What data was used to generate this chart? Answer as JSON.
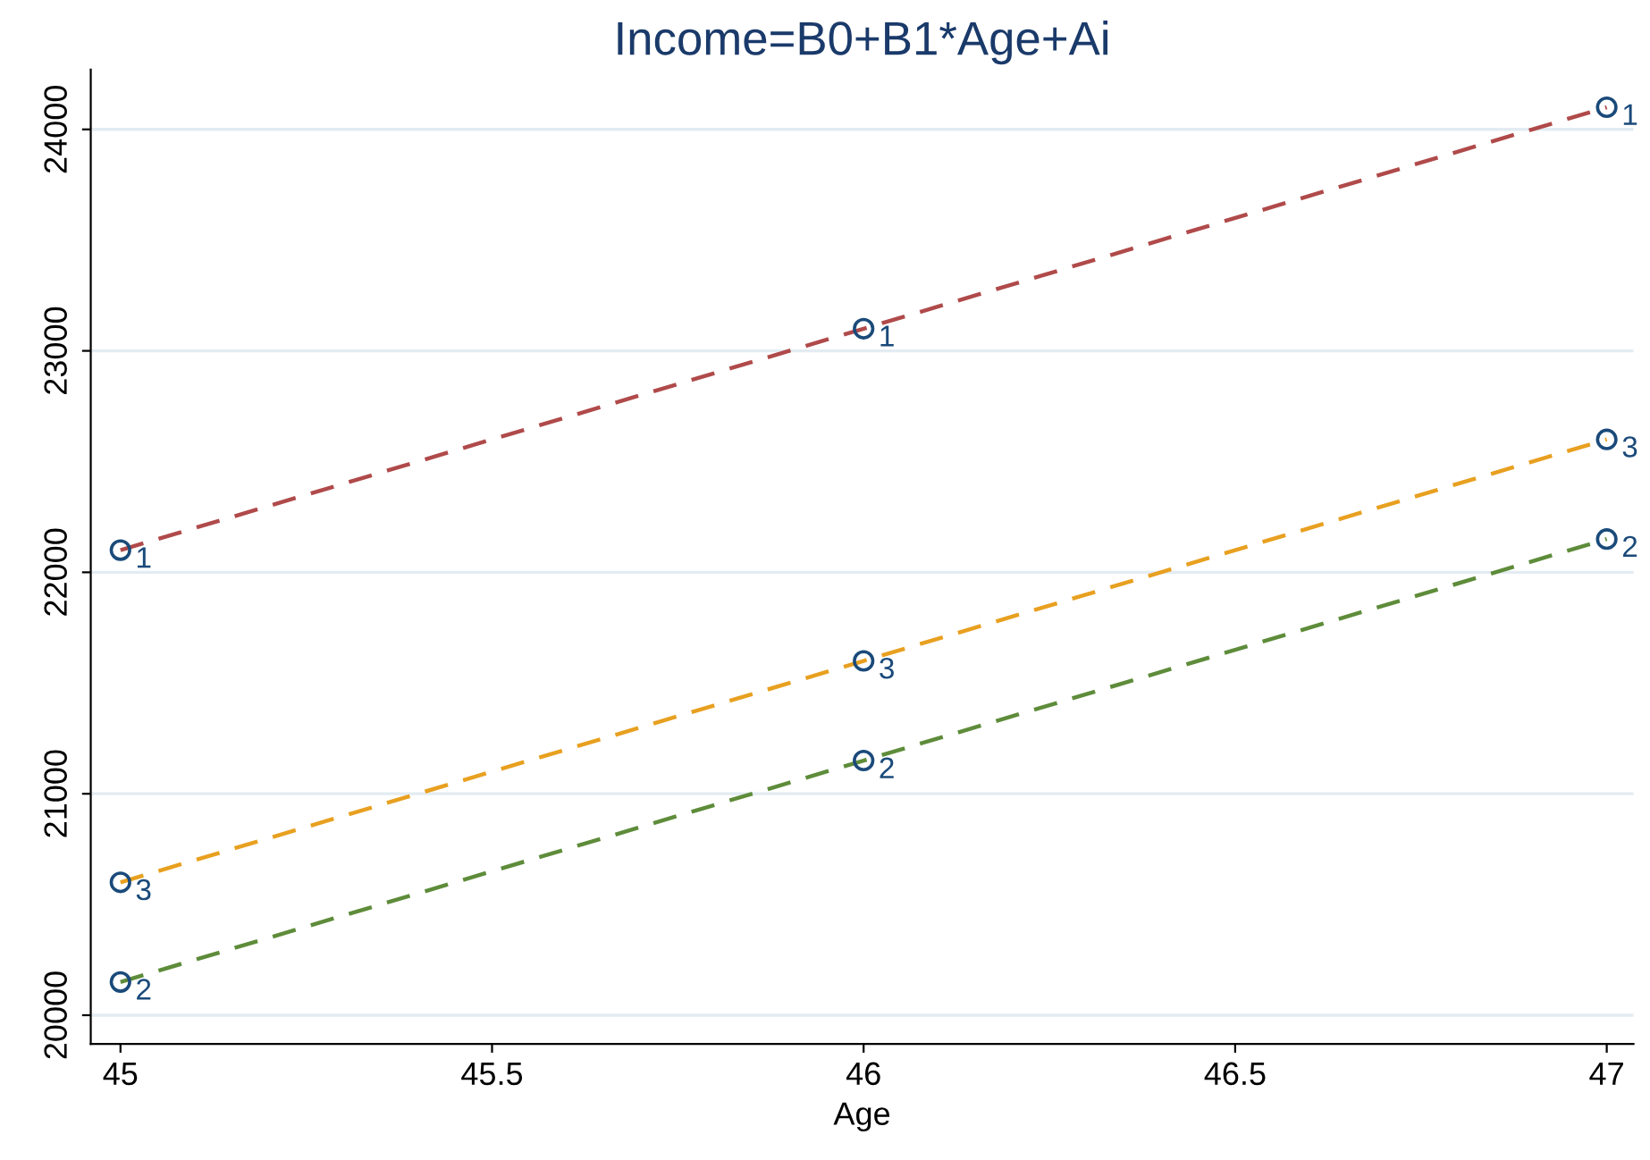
{
  "chart_data": {
    "type": "line",
    "title": "Income=B0+B1*Age+Ai",
    "xlabel": "Age",
    "x": [
      45,
      46,
      47
    ],
    "series": [
      {
        "color": "#b04a4a",
        "values": [
          22100,
          23100,
          24100
        ],
        "line_style": "dashed",
        "marker": "none"
      },
      {
        "color": "#5e8c3a",
        "values": [
          20150,
          21150,
          22150
        ],
        "line_style": "dashed",
        "marker": "none"
      },
      {
        "color": "#e8a020",
        "values": [
          20600,
          21600,
          22600
        ],
        "line_style": "dashed",
        "marker": "none"
      },
      {
        "type": "scatter",
        "name": "1",
        "color": "#1a4a7a",
        "values": [
          22100,
          23100,
          24100
        ],
        "marker": "circle"
      },
      {
        "type": "scatter",
        "name": "2",
        "color": "#1a4a7a",
        "values": [
          20150,
          21150,
          22150
        ],
        "marker": "circle"
      },
      {
        "type": "scatter",
        "name": "3",
        "color": "#1a4a7a",
        "values": [
          20600,
          21600,
          22600
        ],
        "marker": "circle"
      }
    ],
    "xlim": [
      44.96,
      47.036
    ],
    "ylim": [
      19870,
      24270
    ],
    "xticks": [
      45,
      45.5,
      46,
      46.5,
      47
    ],
    "yticks": [
      20000,
      21000,
      22000,
      23000,
      24000
    ],
    "grid": "y",
    "legend": false
  }
}
